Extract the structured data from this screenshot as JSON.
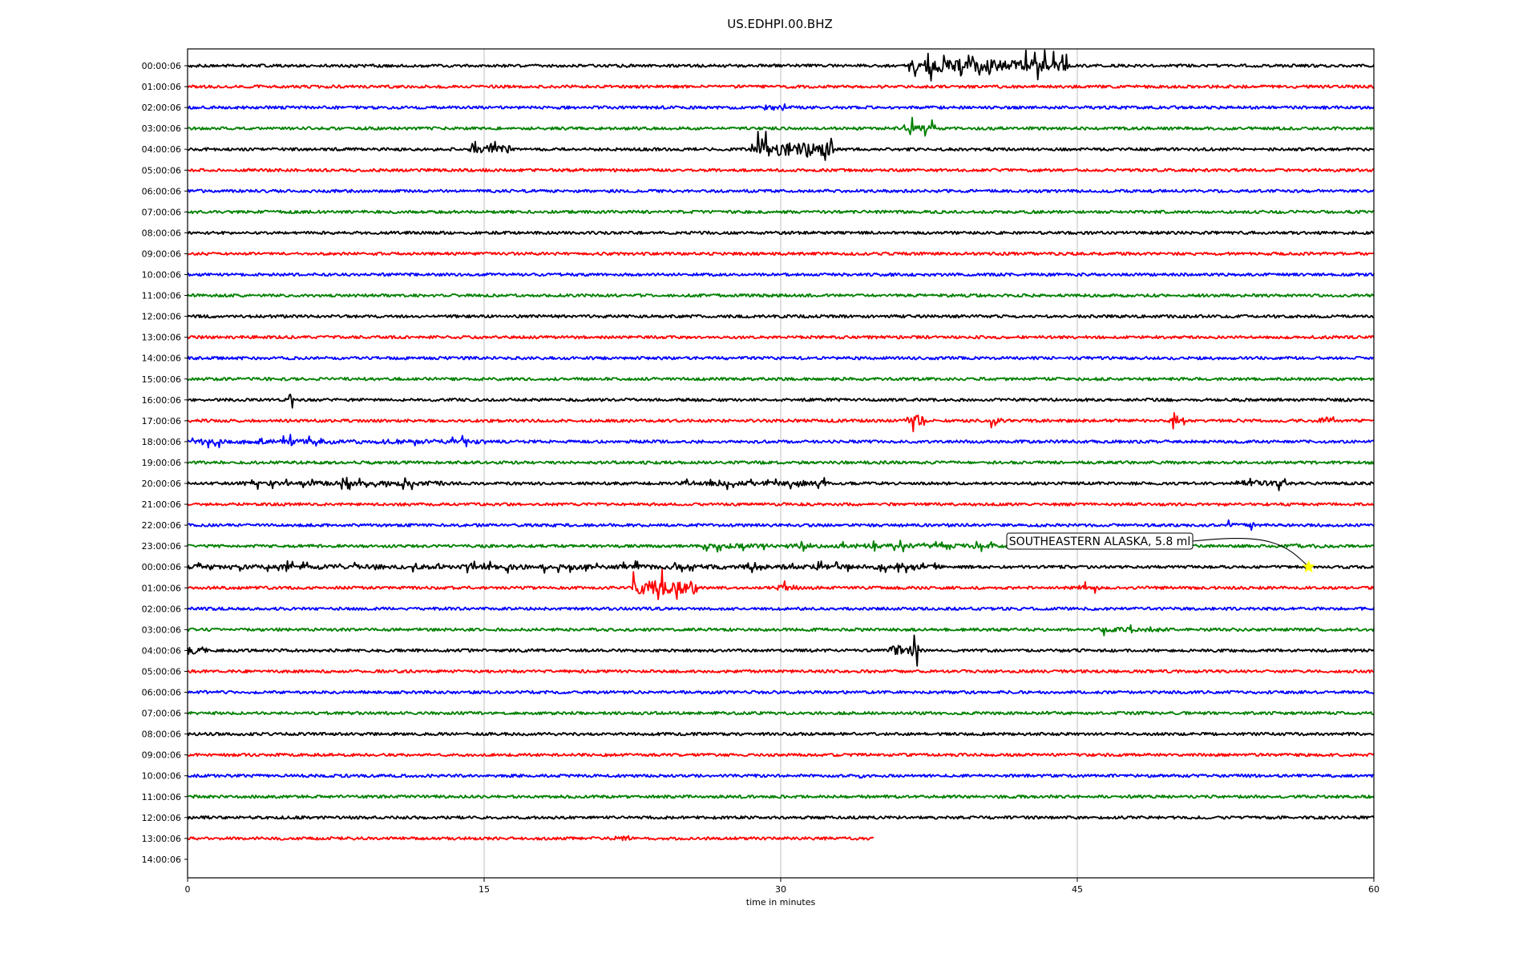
{
  "chart_data": {
    "type": "line",
    "title": "US.EDHPI.00.BHZ",
    "xlabel": "time in minutes",
    "xlim": [
      0,
      60
    ],
    "x_ticks": [
      0,
      15,
      30,
      45,
      60
    ],
    "grid": "vertical",
    "row_labels": [
      "00:00:06",
      "01:00:06",
      "02:00:06",
      "03:00:06",
      "04:00:06",
      "05:00:06",
      "06:00:06",
      "07:00:06",
      "08:00:06",
      "09:00:06",
      "10:00:06",
      "11:00:06",
      "12:00:06",
      "13:00:06",
      "14:00:06",
      "15:00:06",
      "16:00:06",
      "17:00:06",
      "18:00:06",
      "19:00:06",
      "20:00:06",
      "21:00:06",
      "22:00:06",
      "23:00:06",
      "00:00:06",
      "01:00:06",
      "02:00:06",
      "03:00:06",
      "04:00:06",
      "05:00:06",
      "06:00:06",
      "07:00:06",
      "08:00:06",
      "09:00:06",
      "10:00:06",
      "11:00:06",
      "12:00:06",
      "13:00:06",
      "14:00:06"
    ],
    "trace_colors": [
      "#000000",
      "#ff0000",
      "#0000ff",
      "#008000"
    ],
    "trace_end_minutes": [
      60,
      60,
      60,
      60,
      60,
      60,
      60,
      60,
      60,
      60,
      60,
      60,
      60,
      60,
      60,
      60,
      60,
      60,
      60,
      60,
      60,
      60,
      60,
      60,
      60,
      60,
      60,
      60,
      60,
      60,
      60,
      60,
      60,
      60,
      60,
      60,
      60,
      34.7,
      0
    ],
    "events": [
      {
        "row": 0,
        "start": 36.5,
        "end": 44.5,
        "amp": 1.6
      },
      {
        "row": 2,
        "start": 29.2,
        "end": 30.3,
        "amp": 0.8
      },
      {
        "row": 3,
        "start": 36.2,
        "end": 37.8,
        "amp": 1.1
      },
      {
        "row": 4,
        "start": 14.3,
        "end": 16.4,
        "amp": 1.0
      },
      {
        "row": 4,
        "start": 28.5,
        "end": 32.7,
        "amp": 1.8
      },
      {
        "row": 16,
        "start": 5.1,
        "end": 5.3,
        "amp": 1.5
      },
      {
        "row": 17,
        "start": 36.4,
        "end": 37.3,
        "amp": 1.6
      },
      {
        "row": 17,
        "start": 40.5,
        "end": 41.3,
        "amp": 0.8
      },
      {
        "row": 17,
        "start": 49.5,
        "end": 50.4,
        "amp": 0.8
      },
      {
        "row": 17,
        "start": 57.2,
        "end": 58.0,
        "amp": 1.0
      },
      {
        "row": 18,
        "start": 0.1,
        "end": 15.2,
        "amp": 0.6
      },
      {
        "row": 18,
        "start": 5.1,
        "end": 5.3,
        "amp": 3.2
      },
      {
        "row": 20,
        "start": 2.5,
        "end": 13.0,
        "amp": 0.6
      },
      {
        "row": 20,
        "start": 25.0,
        "end": 32.5,
        "amp": 0.6
      },
      {
        "row": 20,
        "start": 53.0,
        "end": 55.5,
        "amp": 0.8
      },
      {
        "row": 22,
        "start": 38.0,
        "end": 38.8,
        "amp": 0.5
      },
      {
        "row": 22,
        "start": 52.5,
        "end": 54.0,
        "amp": 0.5
      },
      {
        "row": 23,
        "start": 26.0,
        "end": 44.0,
        "amp": 0.6
      },
      {
        "row": 23,
        "start": 55.5,
        "end": 57.5,
        "amp": 0.5
      },
      {
        "row": 24,
        "start": 0.0,
        "end": 38.0,
        "amp": 0.6
      },
      {
        "row": 25,
        "start": 22.5,
        "end": 25.8,
        "amp": 1.8
      },
      {
        "row": 25,
        "start": 29.5,
        "end": 31.0,
        "amp": 0.7
      },
      {
        "row": 25,
        "start": 44.8,
        "end": 46.2,
        "amp": 0.6
      },
      {
        "row": 27,
        "start": 46.0,
        "end": 49.5,
        "amp": 0.6
      },
      {
        "row": 28,
        "start": 0.0,
        "end": 1.0,
        "amp": 1.0
      },
      {
        "row": 28,
        "start": 35.5,
        "end": 37.0,
        "amp": 1.5
      },
      {
        "row": 34,
        "start": 33.8,
        "end": 34.4,
        "amp": 0.8
      },
      {
        "row": 37,
        "start": 21.6,
        "end": 22.4,
        "amp": 0.6
      }
    ],
    "annotations": [
      {
        "text": "SOUTHEASTERN ALASKA, 5.8 ml",
        "row": 24,
        "minute": 56.7,
        "marker": "star",
        "marker_color": "#ffff00"
      }
    ]
  }
}
